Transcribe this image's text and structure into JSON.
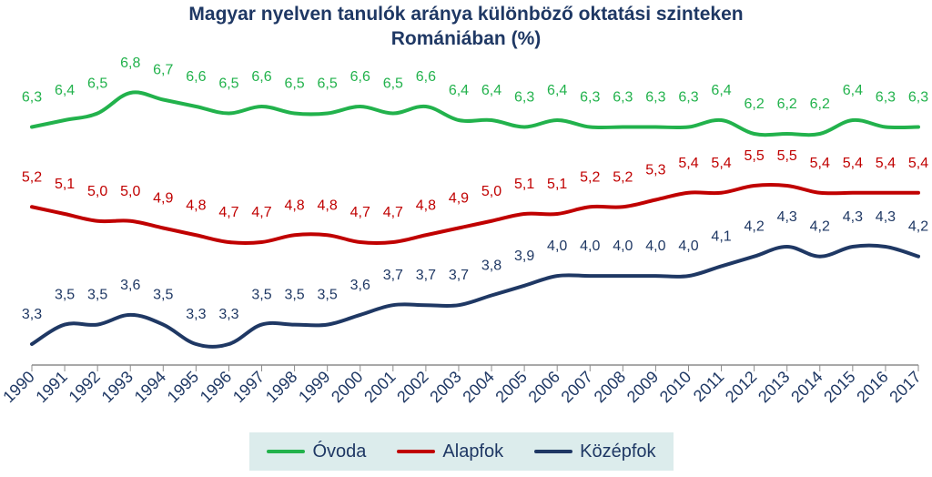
{
  "chart_data": {
    "type": "line",
    "title_line1": "Magyar nyelven tanulók aránya különböző oktatási szinteken",
    "title_line2": "Romániában (%)",
    "x": [
      "1990",
      "1991",
      "1992",
      "1993",
      "1994",
      "1995",
      "1996",
      "1997",
      "1998",
      "1999",
      "2000",
      "2001",
      "2002",
      "2003",
      "2004",
      "2005",
      "2006",
      "2007",
      "2008",
      "2009",
      "2010",
      "2011",
      "2012",
      "2013",
      "2014",
      "2015",
      "2016",
      "2017"
    ],
    "series": [
      {
        "name": "Óvoda",
        "color": "#22b24c",
        "values": [
          6.3,
          6.4,
          6.5,
          6.8,
          6.7,
          6.6,
          6.5,
          6.6,
          6.5,
          6.5,
          6.6,
          6.5,
          6.6,
          6.4,
          6.4,
          6.3,
          6.4,
          6.3,
          6.3,
          6.3,
          6.3,
          6.4,
          6.2,
          6.2,
          6.2,
          6.4,
          6.3,
          6.3
        ],
        "labels": [
          "6,3",
          "6,4",
          "6,5",
          "6,8",
          "6,7",
          "6,6",
          "6,5",
          "6,6",
          "6,5",
          "6,5",
          "6,6",
          "6,5",
          "6,6",
          "6,4",
          "6,4",
          "6,3",
          "6,4",
          "6,3",
          "6,3",
          "6,3",
          "6,3",
          "6,4",
          "6,2",
          "6,2",
          "6,2",
          "6,4",
          "6,3",
          "6,3"
        ]
      },
      {
        "name": "Alapfok",
        "color": "#c00000",
        "values": [
          5.2,
          5.1,
          5.0,
          5.0,
          4.9,
          4.8,
          4.7,
          4.7,
          4.8,
          4.8,
          4.7,
          4.7,
          4.8,
          4.9,
          5.0,
          5.1,
          5.1,
          5.2,
          5.2,
          5.3,
          5.4,
          5.4,
          5.5,
          5.5,
          5.4,
          5.4,
          5.4,
          5.4
        ],
        "labels": [
          "5,2",
          "5,1",
          "5,0",
          "5,0",
          "4,9",
          "4,8",
          "4,7",
          "4,7",
          "4,8",
          "4,8",
          "4,7",
          "4,7",
          "4,8",
          "4,9",
          "5,0",
          "5,1",
          "5,1",
          "5,2",
          "5,2",
          "5,3",
          "5,4",
          "5,4",
          "5,5",
          "5,5",
          "5,4",
          "5,4",
          "5,4",
          "5,4"
        ]
      },
      {
        "name": "Középfok",
        "color": "#1f3864",
        "values": [
          3.3,
          3.5,
          3.5,
          3.6,
          3.5,
          3.3,
          3.3,
          3.5,
          3.5,
          3.5,
          3.6,
          3.7,
          3.7,
          3.7,
          3.8,
          3.9,
          4.0,
          4.0,
          4.0,
          4.0,
          4.0,
          4.1,
          4.2,
          4.3,
          4.2,
          4.3,
          4.3,
          4.2
        ],
        "labels": [
          "3,3",
          "3,5",
          "3,5",
          "3,6",
          "3,5",
          "3,3",
          "3,3",
          "3,5",
          "3,5",
          "3,5",
          "3,6",
          "3,7",
          "3,7",
          "3,7",
          "3,8",
          "3,9",
          "4,0",
          "4,0",
          "4,0",
          "4,0",
          "4,0",
          "4,1",
          "4,2",
          "4,3",
          "4,2",
          "4,3",
          "4,3",
          "4,2"
        ]
      }
    ],
    "legend_position": "bottom",
    "grid": false
  }
}
